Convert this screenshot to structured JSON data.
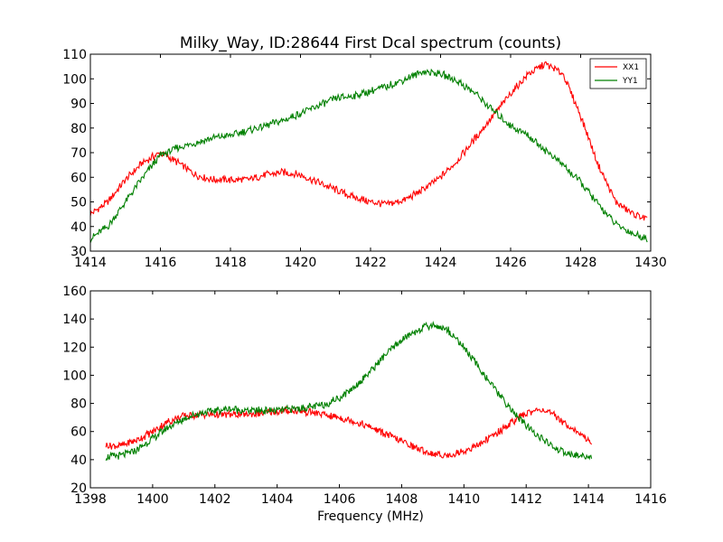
{
  "title": "Milky_Way, ID:28644 First Dcal spectrum (counts)",
  "chart_data": [
    {
      "type": "line",
      "xlabel": "",
      "xlim": [
        1414,
        1430
      ],
      "ylim": [
        30,
        110
      ],
      "xticks": [
        1414,
        1416,
        1418,
        1420,
        1422,
        1424,
        1426,
        1428,
        1430
      ],
      "yticks": [
        30,
        40,
        50,
        60,
        70,
        80,
        90,
        100,
        110
      ],
      "x_range": [
        1414.0,
        1429.9
      ],
      "legend": {
        "location": "top-right",
        "entries": [
          "XX1",
          "YY1"
        ]
      },
      "series": [
        {
          "name": "XX1",
          "color": "#ff0000",
          "x": [
            1414.0,
            1414.5,
            1415.0,
            1415.5,
            1416.0,
            1416.5,
            1417.0,
            1417.5,
            1418.0,
            1418.5,
            1419.0,
            1419.5,
            1420.0,
            1420.5,
            1421.0,
            1421.5,
            1422.0,
            1422.5,
            1423.0,
            1423.5,
            1424.0,
            1424.5,
            1425.0,
            1425.5,
            1426.0,
            1426.5,
            1427.0,
            1427.5,
            1428.0,
            1428.5,
            1429.0,
            1429.5,
            1429.9
          ],
          "values": [
            45,
            50,
            59,
            66,
            70,
            66,
            61,
            59,
            59,
            59,
            61,
            62,
            61,
            58,
            55,
            52,
            50,
            49,
            51,
            55,
            60,
            67,
            76,
            85,
            94,
            102,
            106,
            102,
            85,
            65,
            50,
            45,
            43
          ]
        },
        {
          "name": "YY1",
          "color": "#008000",
          "x": [
            1414.0,
            1414.5,
            1415.0,
            1415.5,
            1416.0,
            1416.5,
            1417.0,
            1417.5,
            1418.0,
            1418.5,
            1419.0,
            1419.5,
            1420.0,
            1420.5,
            1421.0,
            1421.5,
            1422.0,
            1422.5,
            1423.0,
            1423.5,
            1424.0,
            1424.5,
            1425.0,
            1425.5,
            1426.0,
            1426.5,
            1427.0,
            1427.5,
            1428.0,
            1428.5,
            1429.0,
            1429.5,
            1429.9
          ],
          "values": [
            35,
            40,
            50,
            60,
            69,
            72,
            74,
            76,
            77,
            79,
            81,
            83,
            86,
            89,
            92,
            93,
            95,
            97,
            100,
            103,
            102,
            99,
            94,
            87,
            81,
            77,
            71,
            65,
            58,
            49,
            41,
            37,
            35
          ]
        }
      ]
    },
    {
      "type": "line",
      "xlabel": "Frequency (MHz)",
      "xlim": [
        1398,
        1416
      ],
      "ylim": [
        20,
        160
      ],
      "xticks": [
        1398,
        1400,
        1402,
        1404,
        1406,
        1408,
        1410,
        1412,
        1414,
        1416
      ],
      "yticks": [
        20,
        40,
        60,
        80,
        100,
        120,
        140,
        160
      ],
      "x_range": [
        1398.5,
        1414.1
      ],
      "series": [
        {
          "name": "XX1",
          "color": "#ff0000",
          "x": [
            1398.5,
            1399.0,
            1399.5,
            1400.0,
            1400.5,
            1401.0,
            1401.5,
            1402.0,
            1402.5,
            1403.0,
            1403.5,
            1404.0,
            1404.5,
            1405.0,
            1405.5,
            1406.0,
            1406.5,
            1407.0,
            1407.5,
            1408.0,
            1408.5,
            1409.0,
            1409.5,
            1410.0,
            1410.5,
            1411.0,
            1411.5,
            1412.0,
            1412.5,
            1413.0,
            1413.5,
            1414.1
          ],
          "values": [
            50,
            50,
            54,
            60,
            67,
            71,
            72,
            72,
            72,
            72,
            73,
            74,
            75,
            74,
            72,
            70,
            67,
            63,
            58,
            53,
            48,
            44,
            43,
            46,
            51,
            58,
            66,
            73,
            76,
            70,
            62,
            52
          ]
        },
        {
          "name": "YY1",
          "color": "#008000",
          "x": [
            1398.5,
            1399.0,
            1399.5,
            1400.0,
            1400.5,
            1401.0,
            1401.5,
            1402.0,
            1402.5,
            1403.0,
            1403.5,
            1404.0,
            1404.5,
            1405.0,
            1405.5,
            1406.0,
            1406.5,
            1407.0,
            1407.5,
            1408.0,
            1408.5,
            1409.0,
            1409.5,
            1410.0,
            1410.5,
            1411.0,
            1411.5,
            1412.0,
            1412.5,
            1413.0,
            1413.5,
            1414.1
          ],
          "values": [
            42,
            43,
            47,
            55,
            63,
            69,
            73,
            75,
            76,
            75,
            75,
            75,
            76,
            77,
            79,
            84,
            92,
            103,
            115,
            125,
            132,
            136,
            132,
            120,
            105,
            90,
            76,
            64,
            55,
            47,
            43,
            42
          ]
        }
      ]
    }
  ]
}
